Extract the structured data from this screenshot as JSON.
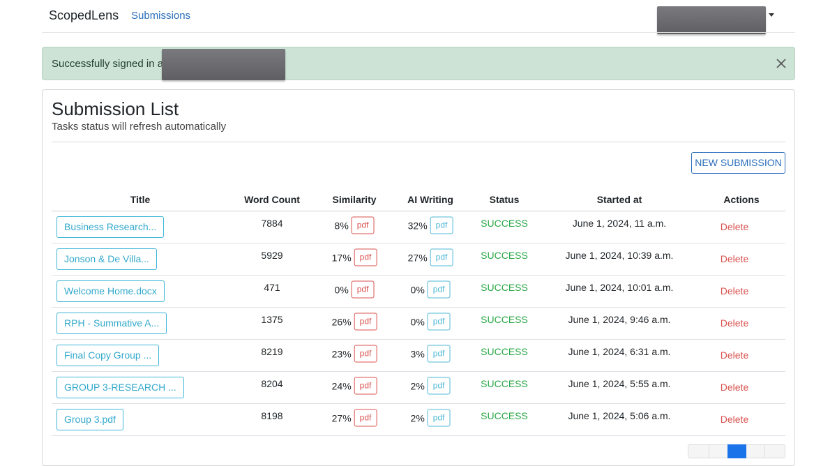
{
  "navbar": {
    "brand": "ScopedLens",
    "link": "Submissions"
  },
  "alert": {
    "message": "Successfully signed in as c"
  },
  "card": {
    "title": "Submission List",
    "subtitle": "Tasks status will refresh automatically",
    "button": "NEW SUBMISSION"
  },
  "table": {
    "headers": [
      "Title",
      "Word Count",
      "Similarity",
      "AI Writing",
      "Status",
      "Started at",
      "Actions"
    ],
    "rows": [
      {
        "title": "Business Research...",
        "word_count": "7884",
        "similarity": "8%",
        "similarity_report": "pdf",
        "ai_writing": "32%",
        "ai_report": "pdf",
        "status": "SUCCESS",
        "started_at": "June 1, 2024, 11 a.m.",
        "action": "Delete"
      },
      {
        "title": "Jonson & De Villa...",
        "word_count": "5929",
        "similarity": "17%",
        "similarity_report": "pdf",
        "ai_writing": "27%",
        "ai_report": "pdf",
        "status": "SUCCESS",
        "started_at": "June 1, 2024, 10:39 a.m.",
        "action": "Delete"
      },
      {
        "title": "Welcome Home.docx",
        "word_count": "471",
        "similarity": "0%",
        "similarity_report": "pdf",
        "ai_writing": "0%",
        "ai_report": "pdf",
        "status": "SUCCESS",
        "started_at": "June 1, 2024, 10:01 a.m.",
        "action": "Delete"
      },
      {
        "title": "RPH - Summative A...",
        "word_count": "1375",
        "similarity": "26%",
        "similarity_report": "pdf",
        "ai_writing": "0%",
        "ai_report": "pdf",
        "status": "SUCCESS",
        "started_at": "June 1, 2024, 9:46 a.m.",
        "action": "Delete"
      },
      {
        "title": "Final Copy Group ...",
        "word_count": "8219",
        "similarity": "23%",
        "similarity_report": "pdf",
        "ai_writing": "3%",
        "ai_report": "pdf",
        "status": "SUCCESS",
        "started_at": "June 1, 2024, 6:31 a.m.",
        "action": "Delete"
      },
      {
        "title": "GROUP 3-RESEARCH ...",
        "word_count": "8204",
        "similarity": "24%",
        "similarity_report": "pdf",
        "ai_writing": "2%",
        "ai_report": "pdf",
        "status": "SUCCESS",
        "started_at": "June 1, 2024, 5:55 a.m.",
        "action": "Delete"
      },
      {
        "title": "Group 3.pdf",
        "word_count": "8198",
        "similarity": "27%",
        "similarity_report": "pdf",
        "ai_writing": "2%",
        "ai_report": "pdf",
        "status": "SUCCESS",
        "started_at": "June 1, 2024, 5:06 a.m.",
        "action": "Delete"
      }
    ]
  }
}
